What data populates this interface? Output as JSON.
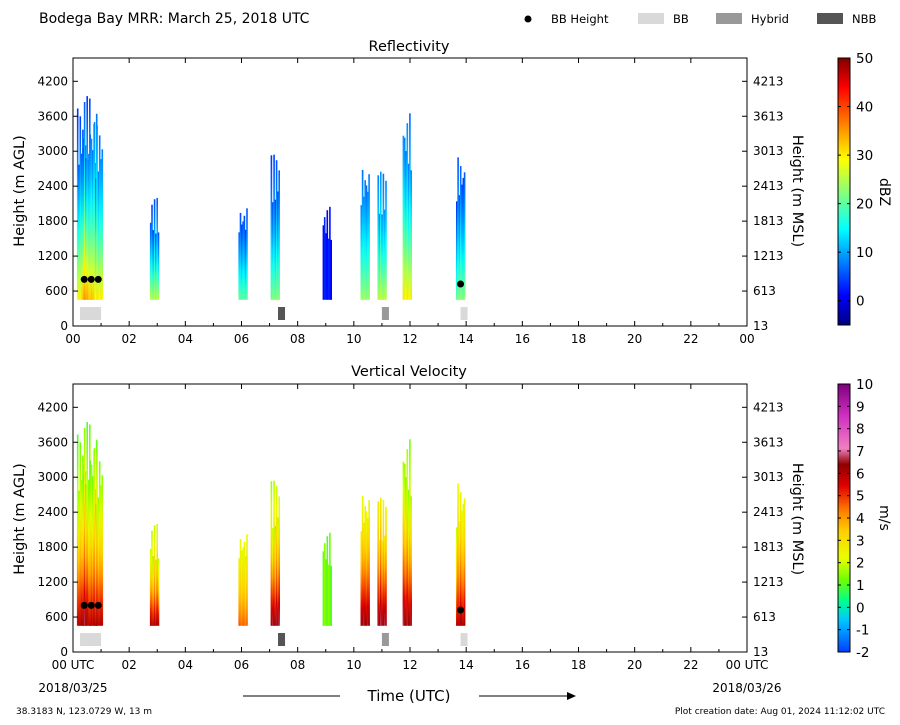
{
  "header": {
    "title": "Bodega Bay MRR:  March 25, 2018 UTC",
    "legend": [
      {
        "label": "BB Height",
        "symbol": "dot",
        "color": "#000000"
      },
      {
        "label": "BB",
        "symbol": "box",
        "color": "#d9d9d9"
      },
      {
        "label": "Hybrid",
        "symbol": "box",
        "color": "#999999"
      },
      {
        "label": "NBB",
        "symbol": "box",
        "color": "#555555"
      }
    ]
  },
  "footer": {
    "location": "38.3183 N, 123.0729 W, 13 m",
    "created": "Plot creation date: Aug 01, 2024 11:12:02 UTC",
    "xlabel": "Time (UTC)",
    "date_start": "2018/03/25",
    "date_end": "2018/03/26"
  },
  "colors": {
    "missing": "#ffffff",
    "frame": "#000000"
  },
  "chart_data": [
    {
      "type": "heatmap",
      "title": "Reflectivity",
      "ylabel": "Height (m AGL)",
      "ylabel_right": "Height (m MSL)",
      "cbar_label": "dBZ",
      "cbar_ticks": [
        "50",
        "40",
        "30",
        "20",
        "10",
        "0"
      ],
      "cbar_range": [
        -5,
        50
      ],
      "colormap": "jet",
      "xticks": [
        "00",
        "02",
        "04",
        "06",
        "08",
        "10",
        "12",
        "14",
        "16",
        "18",
        "20",
        "22",
        "00"
      ],
      "yticks_left": [
        "4200",
        "3600",
        "3000",
        "2400",
        "1800",
        "1200",
        "600",
        "0"
      ],
      "yticks_right": [
        "4213",
        "3613",
        "3013",
        "2413",
        "1813",
        "1213",
        "613",
        "13"
      ],
      "xlim": [
        0,
        24
      ],
      "ylim": [
        0,
        4600
      ],
      "bright_band_height": [
        {
          "time": 0.4,
          "height": 800
        },
        {
          "time": 0.65,
          "height": 800
        },
        {
          "time": 0.9,
          "height": 800
        },
        {
          "time": 13.8,
          "height": 720
        }
      ],
      "bb_type_bars": [
        {
          "start": 0.25,
          "end": 1.0,
          "type": "BB"
        },
        {
          "start": 7.3,
          "end": 7.55,
          "type": "NBB"
        },
        {
          "start": 11.0,
          "end": 11.25,
          "type": "Hybrid"
        },
        {
          "start": 13.8,
          "end": 14.05,
          "type": "BB"
        }
      ],
      "echoes": [
        {
          "time": 0.3,
          "top": 3750,
          "value_top": 5,
          "value_bottom": 30
        },
        {
          "time": 0.5,
          "top": 3950,
          "value_top": 5,
          "value_bottom": 35
        },
        {
          "time": 0.7,
          "top": 3700,
          "value_top": 8,
          "value_bottom": 33
        },
        {
          "time": 0.9,
          "top": 3500,
          "value_top": 8,
          "value_bottom": 30
        },
        {
          "time": 2.9,
          "top": 2200,
          "value_top": 5,
          "value_bottom": 25
        },
        {
          "time": 6.05,
          "top": 2100,
          "value_top": 5,
          "value_bottom": 20
        },
        {
          "time": 7.2,
          "top": 2950,
          "value_top": 5,
          "value_bottom": 22
        },
        {
          "time": 9.05,
          "top": 2050,
          "value_top": 2,
          "value_bottom": 2
        },
        {
          "time": 10.4,
          "top": 2800,
          "value_top": 8,
          "value_bottom": 24
        },
        {
          "time": 11.0,
          "top": 2650,
          "value_top": 8,
          "value_bottom": 25
        },
        {
          "time": 11.9,
          "top": 3700,
          "value_top": 8,
          "value_bottom": 30
        },
        {
          "time": 13.8,
          "top": 2950,
          "value_top": 5,
          "value_bottom": 22
        }
      ]
    },
    {
      "type": "heatmap",
      "title": "Vertical Velocity",
      "ylabel": "Height (m AGL)",
      "ylabel_right": "Height (m MSL)",
      "cbar_label": "m/s",
      "cbar_ticks": [
        "10",
        "9",
        "8",
        "7",
        "6",
        "5",
        "4",
        "3",
        "2",
        "1",
        "0",
        "-1",
        "-2"
      ],
      "cbar_range": [
        -2,
        10
      ],
      "colormap": "velocity",
      "xticks": [
        "00 UTC",
        "02",
        "04",
        "06",
        "08",
        "10",
        "12",
        "14",
        "16",
        "18",
        "20",
        "22",
        "00 UTC"
      ],
      "yticks_left": [
        "4200",
        "3600",
        "3000",
        "2400",
        "1800",
        "1200",
        "600",
        "0"
      ],
      "yticks_right": [
        "4213",
        "3613",
        "3013",
        "2413",
        "1813",
        "1213",
        "613",
        "13"
      ],
      "xlim": [
        0,
        24
      ],
      "ylim": [
        0,
        4600
      ],
      "bright_band_height": [
        {
          "time": 0.4,
          "height": 800
        },
        {
          "time": 0.65,
          "height": 800
        },
        {
          "time": 0.9,
          "height": 800
        },
        {
          "time": 13.8,
          "height": 720
        }
      ],
      "bb_type_bars": [
        {
          "start": 0.25,
          "end": 1.0,
          "type": "BB"
        },
        {
          "start": 7.3,
          "end": 7.55,
          "type": "NBB"
        },
        {
          "start": 11.0,
          "end": 11.25,
          "type": "Hybrid"
        },
        {
          "start": 13.8,
          "end": 14.05,
          "type": "BB"
        }
      ],
      "echoes": [
        {
          "time": 0.3,
          "top": 3750,
          "value_top": 1.3,
          "value_bottom": 6
        },
        {
          "time": 0.5,
          "top": 3950,
          "value_top": 1.2,
          "value_bottom": 6.5
        },
        {
          "time": 0.7,
          "top": 3700,
          "value_top": 1.3,
          "value_bottom": 6
        },
        {
          "time": 0.9,
          "top": 3500,
          "value_top": 1.5,
          "value_bottom": 6
        },
        {
          "time": 2.9,
          "top": 2200,
          "value_top": 1.8,
          "value_bottom": 6
        },
        {
          "time": 6.05,
          "top": 2100,
          "value_top": 2.2,
          "value_bottom": 4.5
        },
        {
          "time": 7.2,
          "top": 2950,
          "value_top": 1.8,
          "value_bottom": 6.5
        },
        {
          "time": 9.05,
          "top": 2050,
          "value_top": 1.2,
          "value_bottom": 1.2
        },
        {
          "time": 10.4,
          "top": 2800,
          "value_top": 2.5,
          "value_bottom": 6.5
        },
        {
          "time": 11.0,
          "top": 2650,
          "value_top": 2.5,
          "value_bottom": 6.5
        },
        {
          "time": 11.9,
          "top": 3700,
          "value_top": 1.5,
          "value_bottom": 6.5
        },
        {
          "time": 13.8,
          "top": 2950,
          "value_top": 2.2,
          "value_bottom": 6
        }
      ]
    }
  ]
}
